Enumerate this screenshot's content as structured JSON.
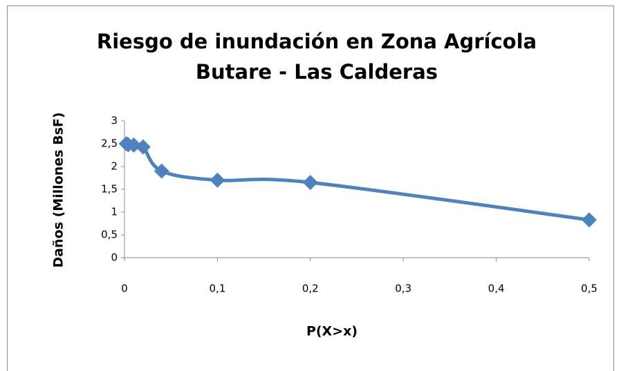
{
  "chart_data": {
    "type": "line",
    "title": [
      "Riesgo de inundación en Zona Agrícola",
      "Butare - Las Calderas"
    ],
    "x_label": "P(X>x)",
    "y_label": "Daños (Millones BsF)",
    "x": [
      0.002,
      0.004,
      0.01,
      0.02,
      0.04,
      0.1,
      0.2,
      0.5
    ],
    "values": [
      2.5,
      2.48,
      2.47,
      2.43,
      1.9,
      1.7,
      1.65,
      0.83
    ],
    "color": "#4f81bd",
    "smooth": true,
    "marker": "diamond",
    "xlim": [
      0,
      0.5
    ],
    "xticks": [
      0,
      {
        "value": 0.1,
        "label": "0,1"
      },
      {
        "value": 0.2,
        "label": "0,2"
      },
      {
        "value": 0.3,
        "label": "0,3"
      },
      {
        "value": 0.4,
        "label": "0,4"
      },
      {
        "value": 0.5,
        "label": "0,5"
      }
    ],
    "ylim": [
      0,
      3
    ],
    "yticks": [
      0,
      {
        "value": 0.5,
        "label": "0,5"
      },
      1,
      {
        "value": 1.5,
        "label": "1,5"
      },
      2,
      {
        "value": 2.5,
        "label": "2,5"
      },
      3
    ],
    "grid": false
  }
}
